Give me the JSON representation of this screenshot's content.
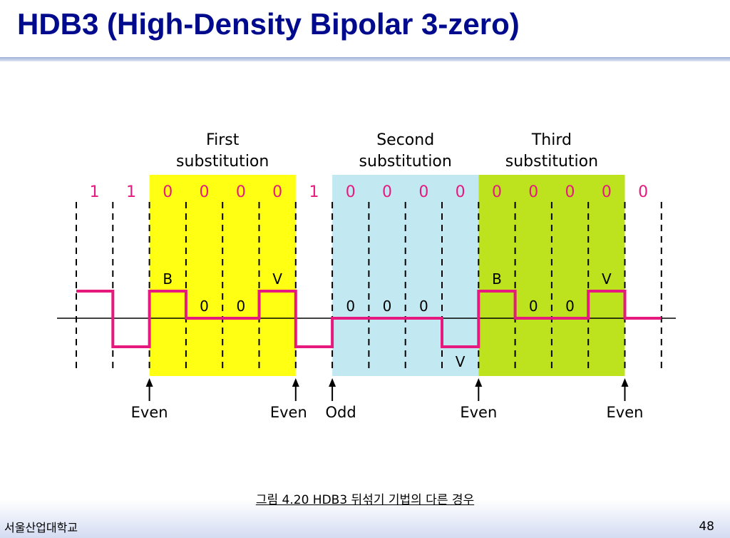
{
  "title": "HDB3 (High-Density Bipolar 3-zero)",
  "diagram": {
    "regions": [
      {
        "line1": "First",
        "line2": "substitution",
        "color": "#ffff14"
      },
      {
        "line1": "Second",
        "line2": "substitution",
        "color": "#c2e9f2"
      },
      {
        "line1": "Third",
        "line2": "substitution",
        "color": "#bde21e"
      }
    ],
    "bits": [
      "1",
      "1",
      "0",
      "0",
      "0",
      "0",
      "1",
      "0",
      "0",
      "0",
      "0",
      "0",
      "0",
      "0",
      "0",
      "0"
    ],
    "levels": [
      1,
      -1,
      1,
      0,
      0,
      1,
      -1,
      0,
      0,
      0,
      -1,
      1,
      0,
      0,
      1,
      0
    ],
    "pulse_labels": [
      {
        "slot": 2,
        "text": "B",
        "pos": "above"
      },
      {
        "slot": 3,
        "text": "0",
        "pos": "above"
      },
      {
        "slot": 4,
        "text": "0",
        "pos": "above"
      },
      {
        "slot": 5,
        "text": "V",
        "pos": "above"
      },
      {
        "slot": 7,
        "text": "0",
        "pos": "above"
      },
      {
        "slot": 8,
        "text": "0",
        "pos": "above"
      },
      {
        "slot": 9,
        "text": "0",
        "pos": "above"
      },
      {
        "slot": 10,
        "text": "V",
        "pos": "below"
      },
      {
        "slot": 11,
        "text": "B",
        "pos": "above"
      },
      {
        "slot": 12,
        "text": "0",
        "pos": "above"
      },
      {
        "slot": 13,
        "text": "0",
        "pos": "above"
      },
      {
        "slot": 14,
        "text": "V",
        "pos": "above"
      }
    ],
    "arrows": [
      {
        "boundary": 2,
        "label": "Even"
      },
      {
        "boundary": 6,
        "label": "Even"
      },
      {
        "boundary": 7,
        "label": "Odd"
      },
      {
        "boundary": 11,
        "label": "Even"
      },
      {
        "boundary": 15,
        "label": "Even"
      }
    ],
    "colors": {
      "signal": "#e6197f",
      "bit_text": "#e6197f",
      "line": "#000000"
    }
  },
  "caption": "그림 4.20  HDB3 뒤섞기 기법의 다른 경우",
  "footer": {
    "university": "서울산업대학교",
    "page": "48"
  }
}
